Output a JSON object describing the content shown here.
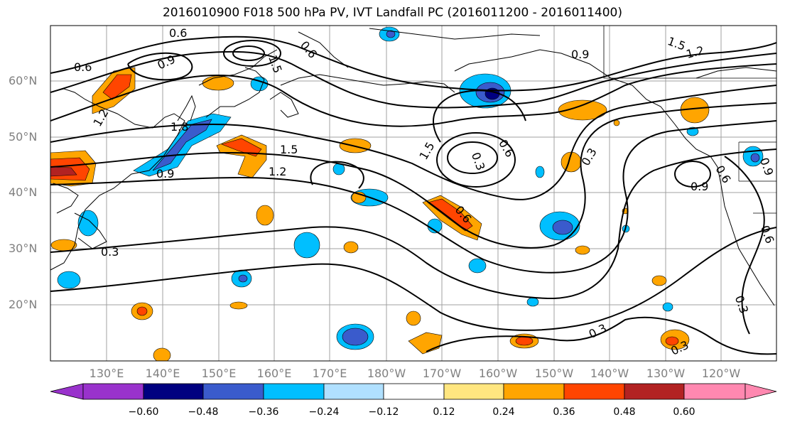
{
  "title": "2016010900 F018 500 hPa PV, IVT Landfall PC (2016011200 - 2016011400)",
  "axes": {
    "lat_labels": [
      "60°N",
      "50°N",
      "40°N",
      "30°N",
      "20°N"
    ],
    "lon_labels": [
      "130°E",
      "140°E",
      "150°E",
      "160°E",
      "170°E",
      "180°W",
      "170°W",
      "160°W",
      "150°W",
      "140°W",
      "130°W",
      "120°W"
    ]
  },
  "colorbar": {
    "labels": [
      "−0.60",
      "−0.48",
      "−0.36",
      "−0.24",
      "−0.12",
      "0.12",
      "0.24",
      "0.36",
      "0.48",
      "0.60"
    ],
    "colors": [
      "#9932cc",
      "#000080",
      "#3a5bcc",
      "#00bfff",
      "#b0e0ff",
      "#ffffff",
      "#ffe680",
      "#ffa500",
      "#ff4500",
      "#b22222",
      "#ff88b0"
    ]
  },
  "contour_labels": [
    {
      "text": "0.6"
    },
    {
      "text": "0.9"
    },
    {
      "text": "0.6"
    },
    {
      "text": "1.5"
    },
    {
      "text": "0.6"
    },
    {
      "text": "1.2"
    },
    {
      "text": "1.8"
    },
    {
      "text": "1.5"
    },
    {
      "text": "1.2"
    },
    {
      "text": "0.9"
    },
    {
      "text": "1.5"
    },
    {
      "text": "0.9"
    },
    {
      "text": "1.5"
    },
    {
      "text": "1.2"
    },
    {
      "text": "0.3"
    },
    {
      "text": "0.6"
    },
    {
      "text": "0.3"
    },
    {
      "text": "0.6"
    },
    {
      "text": "0.9"
    },
    {
      "text": "0.6"
    },
    {
      "text": "0.3"
    },
    {
      "text": "0.3"
    },
    {
      "text": "0.3"
    },
    {
      "text": "0.6"
    },
    {
      "text": "0.3"
    },
    {
      "text": "0.9"
    }
  ]
}
